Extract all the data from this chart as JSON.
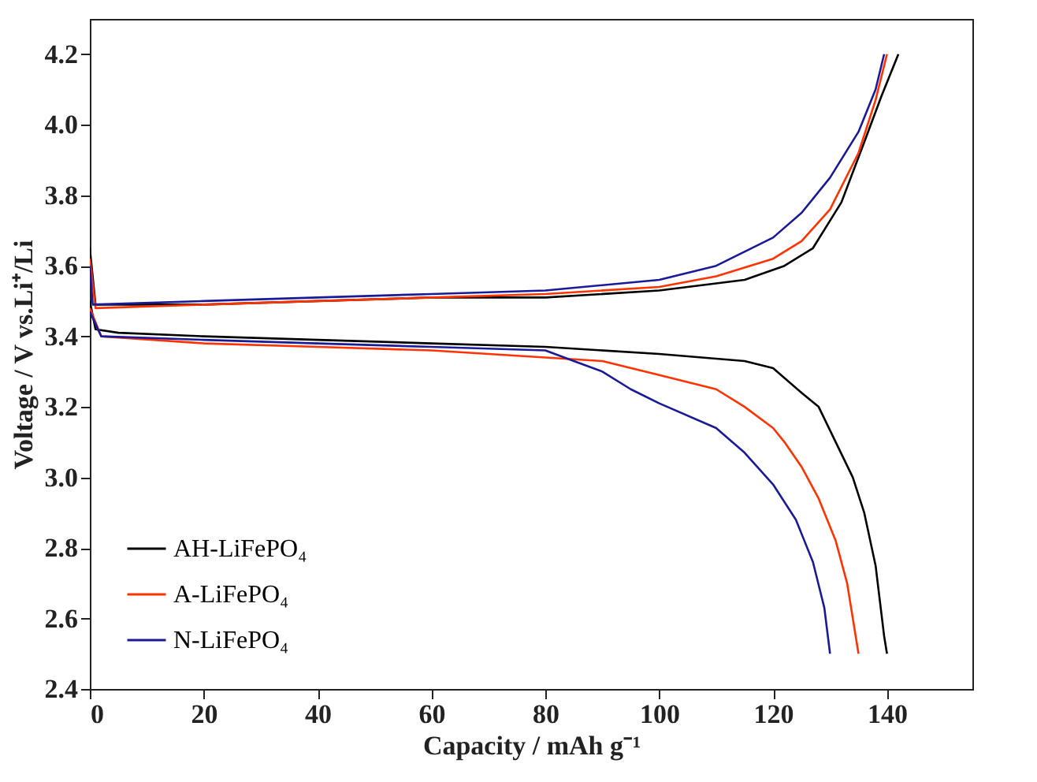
{
  "chart_data": {
    "type": "line",
    "xlabel": "Capacity / mAh g⁻¹",
    "ylabel": "Voltage / V vs.Li⁺/Li",
    "xlim": [
      0,
      155
    ],
    "ylim": [
      2.4,
      4.3
    ],
    "xticks": [
      0,
      20,
      40,
      60,
      80,
      100,
      120,
      140
    ],
    "yticks": [
      2.4,
      2.6,
      2.8,
      {
        "value": 3.0,
        "label": "3.0"
      },
      3.2,
      3.4,
      3.6,
      3.8,
      {
        "value": 4.0,
        "label": "4.0"
      },
      4.2
    ],
    "grid": false,
    "legend": "bottom left",
    "line_style": "solid",
    "marker": "none",
    "series": [
      {
        "name": "AH-LiFePO₄",
        "color": "#000000",
        "x": [
          0,
          1,
          20,
          40,
          60,
          80,
          100,
          115,
          122,
          127,
          132,
          136,
          139,
          142
        ],
        "values": [
          3.65,
          3.49,
          3.49,
          3.5,
          3.51,
          3.51,
          3.53,
          3.56,
          3.6,
          3.65,
          3.78,
          3.95,
          4.08,
          4.2
        ]
      },
      {
        "name": "A-LiFePO₄",
        "color": "#ff3300",
        "x": [
          0,
          1,
          20,
          40,
          60,
          80,
          100,
          110,
          120,
          125,
          130,
          135,
          138,
          140
        ],
        "values": [
          3.62,
          3.48,
          3.49,
          3.5,
          3.51,
          3.52,
          3.54,
          3.57,
          3.62,
          3.67,
          3.76,
          3.92,
          4.07,
          4.2
        ]
      },
      {
        "name": "N-LiFePO₄",
        "color": "#1a1a99",
        "x": [
          0,
          0.5,
          20,
          40,
          60,
          80,
          100,
          110,
          120,
          125,
          130,
          135,
          138,
          139.5
        ],
        "values": [
          3.6,
          3.49,
          3.5,
          3.51,
          3.52,
          3.53,
          3.56,
          3.6,
          3.68,
          3.75,
          3.85,
          3.98,
          4.1,
          4.2
        ]
      },
      {
        "color": "#000000",
        "x": [
          0,
          1,
          5,
          20,
          40,
          60,
          80,
          100,
          115,
          120,
          125,
          128,
          131,
          134,
          136,
          138,
          139.5,
          140
        ],
        "values": [
          3.5,
          3.42,
          3.41,
          3.4,
          3.39,
          3.38,
          3.37,
          3.35,
          3.33,
          3.31,
          3.24,
          3.2,
          3.1,
          3.0,
          2.9,
          2.75,
          2.55,
          2.5
        ]
      },
      {
        "color": "#ff3300",
        "x": [
          0,
          2,
          20,
          40,
          60,
          80,
          90,
          100,
          110,
          115,
          120,
          122,
          125,
          128,
          131,
          133,
          135
        ],
        "values": [
          3.48,
          3.4,
          3.38,
          3.37,
          3.36,
          3.34,
          3.33,
          3.29,
          3.25,
          3.2,
          3.14,
          3.1,
          3.03,
          2.94,
          2.82,
          2.7,
          2.5
        ]
      },
      {
        "color": "#1a1a99",
        "x": [
          0,
          2,
          20,
          40,
          60,
          80,
          85,
          90,
          95,
          100,
          110,
          115,
          120,
          124,
          127,
          129,
          130
        ],
        "values": [
          3.47,
          3.4,
          3.39,
          3.38,
          3.37,
          3.36,
          3.33,
          3.3,
          3.25,
          3.21,
          3.14,
          3.07,
          2.98,
          2.88,
          2.76,
          2.63,
          2.5
        ]
      }
    ]
  }
}
